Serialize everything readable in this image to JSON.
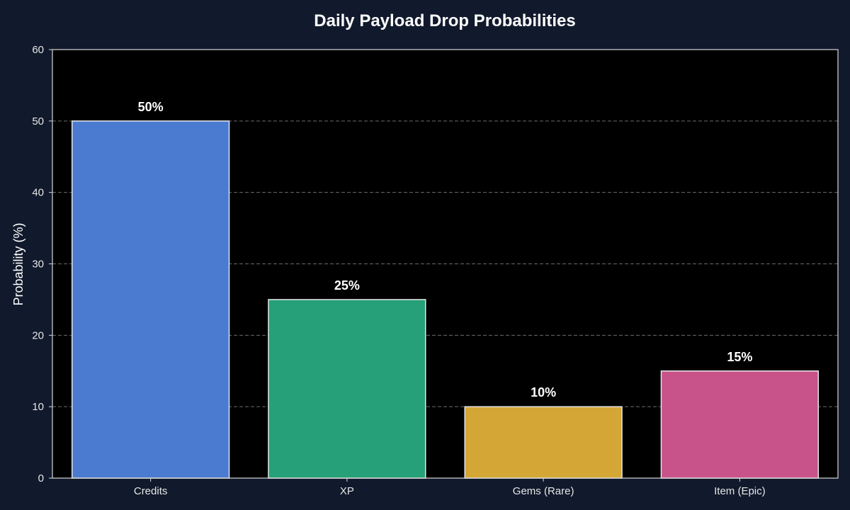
{
  "colors": {
    "figure_background": "#111a2c",
    "plot_background": "#000000",
    "text": "#ffffff",
    "tick_text": "#e6e6e6",
    "axis_frame": "#d9d9d9",
    "grid": "#6b6b6b",
    "bar_edge": "#e6e6e6"
  },
  "chart_data": {
    "type": "bar",
    "title": "Daily Payload Drop Probabilities",
    "xlabel": "",
    "ylabel": "Probability (%)",
    "categories": [
      "Credits",
      "XP",
      "Gems (Rare)",
      "Item (Epic)"
    ],
    "values": [
      50,
      25,
      10,
      15
    ],
    "data_labels": [
      "50%",
      "25%",
      "10%",
      "15%"
    ],
    "bar_colors": [
      "#4a7bd0",
      "#26a078",
      "#d4a636",
      "#c8528a"
    ],
    "ylim": [
      0,
      60
    ],
    "yticks": [
      0,
      10,
      20,
      30,
      40,
      50,
      60
    ],
    "grid": "horizontal dashed",
    "legend": "none"
  }
}
